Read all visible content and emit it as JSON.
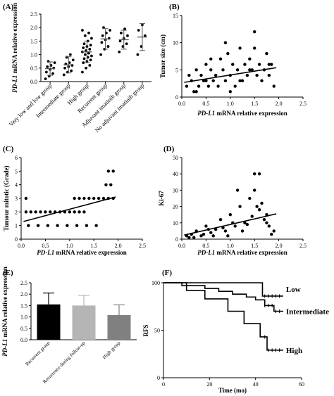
{
  "chart_data": [
    {
      "panel": "(A)",
      "type": "scatter",
      "ylabel_italic": "PD-L1",
      "ylabel_rest": " mRNA relative expression",
      "ylim": [
        0,
        2.5
      ],
      "yticks": [
        "0.0",
        "0.5",
        "1.0",
        "1.5",
        "2.0",
        "2.5"
      ],
      "categories": [
        "Very low and low group",
        "Intermediate group",
        "High group",
        "Recurrent group",
        "Adjuvant imatinib group",
        "No adjuvant imatinib group"
      ],
      "means": [
        0.48,
        0.62,
        1.1,
        1.58,
        1.55,
        1.65
      ],
      "sds": [
        0.25,
        0.3,
        0.4,
        0.38,
        0.35,
        0.5
      ],
      "points": [
        [
          0.1,
          0.2,
          0.3,
          0.35,
          0.45,
          0.5,
          0.55,
          0.6,
          0.7,
          0.75
        ],
        [
          0.25,
          0.35,
          0.4,
          0.5,
          0.55,
          0.6,
          0.65,
          0.7,
          0.8,
          0.9,
          1.0
        ],
        [
          0.35,
          0.5,
          0.6,
          0.7,
          0.75,
          0.8,
          0.85,
          0.9,
          0.95,
          1.0,
          1.05,
          1.1,
          1.15,
          1.2,
          1.25,
          1.3,
          1.35,
          1.4,
          1.5,
          1.6,
          1.7,
          1.8,
          1.9
        ],
        [
          1.0,
          1.2,
          1.3,
          1.45,
          1.55,
          1.6,
          1.7,
          1.8,
          1.9,
          2.0
        ],
        [
          1.1,
          1.3,
          1.4,
          1.5,
          1.6,
          1.7,
          1.8,
          1.95
        ],
        [
          1.0,
          1.3,
          1.7,
          1.9,
          2.1
        ]
      ]
    },
    {
      "panel": "(B)",
      "type": "scatter",
      "xlabel_italic": "PD-L1",
      "xlabel_rest": " mRNA relative expression",
      "ylabel": "Tumor size (cm)",
      "xlim": [
        0,
        2.5
      ],
      "ylim": [
        0,
        15
      ],
      "xticks": [
        "0.0",
        "0.5",
        "1.0",
        "1.5",
        "2.0",
        "2.5"
      ],
      "yticks": [
        "0",
        "5",
        "10",
        "15"
      ],
      "fit": [
        [
          0.05,
          2.7
        ],
        [
          1.95,
          5.4
        ]
      ],
      "x": [
        0.1,
        0.15,
        0.2,
        0.25,
        0.3,
        0.35,
        0.4,
        0.45,
        0.5,
        0.55,
        0.6,
        0.65,
        0.7,
        0.75,
        0.8,
        0.85,
        0.9,
        0.95,
        1.0,
        1.05,
        1.1,
        1.15,
        1.2,
        1.25,
        1.3,
        1.35,
        1.4,
        1.45,
        1.5,
        1.55,
        1.6,
        1.65,
        1.7,
        1.75,
        1.8,
        1.85,
        1.9,
        0.3,
        0.6,
        0.9,
        1.2,
        1.5,
        1.8,
        0.5,
        1.0,
        1.4
      ],
      "y": [
        2,
        4,
        3,
        1,
        5,
        2,
        4,
        3,
        6,
        2,
        5,
        3,
        4,
        2,
        7,
        5,
        3,
        8,
        4,
        6,
        2,
        5,
        9,
        3,
        6,
        4,
        7,
        5,
        12,
        4,
        6,
        3,
        5,
        8,
        4,
        6,
        2,
        1,
        7,
        10,
        3,
        9,
        6,
        3,
        1,
        5
      ]
    },
    {
      "panel": "(C)",
      "type": "scatter",
      "xlabel_italic": "PD-L1",
      "xlabel_rest": " mRNA relative expression",
      "ylabel": "Tumour mitotic (Grade)",
      "xlim": [
        0,
        2.5
      ],
      "ylim": [
        0,
        6
      ],
      "xticks": [
        "0.0",
        "0.5",
        "1.0",
        "1.5",
        "2.0",
        "2.5"
      ],
      "yticks": [
        "0",
        "1",
        "2",
        "3",
        "4",
        "5",
        "6"
      ],
      "fit": [
        [
          0.05,
          1.3
        ],
        [
          1.95,
          3.1
        ]
      ],
      "x": [
        0.1,
        0.2,
        0.3,
        0.4,
        0.5,
        0.6,
        0.7,
        0.8,
        0.9,
        1.0,
        1.1,
        1.2,
        1.3,
        0.15,
        0.35,
        0.55,
        0.75,
        0.95,
        1.15,
        1.35,
        1.55,
        1.1,
        1.2,
        1.3,
        1.4,
        1.5,
        1.6,
        1.7,
        1.8,
        1.9,
        1.75,
        1.85,
        1.8,
        1.9,
        0.1
      ],
      "y": [
        2,
        2,
        2,
        2,
        2,
        2,
        2,
        2,
        2,
        2,
        2,
        2,
        2,
        1,
        1,
        1,
        1,
        1,
        1,
        1,
        1,
        3,
        3,
        3,
        3,
        3,
        3,
        3,
        3,
        3,
        4,
        4,
        5,
        5,
        3
      ]
    },
    {
      "panel": "(D)",
      "type": "scatter",
      "xlabel_italic": "PD-L1",
      "xlabel_rest": " mRNA relative expression",
      "ylabel": "Ki-67",
      "xlim": [
        0,
        2.5
      ],
      "ylim": [
        0,
        50
      ],
      "xticks": [
        "0.0",
        "0.5",
        "1.0",
        "1.5",
        "2.0",
        "2.5"
      ],
      "yticks": [
        "0",
        "10",
        "20",
        "30",
        "40",
        "50"
      ],
      "fit": [
        [
          0.05,
          2.5
        ],
        [
          1.95,
          15.5
        ]
      ],
      "x": [
        0.1,
        0.15,
        0.2,
        0.3,
        0.4,
        0.5,
        0.6,
        0.7,
        0.8,
        0.9,
        1.0,
        1.1,
        1.2,
        1.3,
        1.4,
        1.5,
        1.6,
        1.7,
        1.8,
        1.9,
        0.25,
        0.45,
        0.65,
        0.85,
        1.05,
        1.25,
        1.45,
        1.65,
        1.85,
        0.55,
        0.95,
        1.35,
        1.75,
        1.15,
        1.55,
        1.5,
        1.6,
        1.75
      ],
      "y": [
        2,
        1,
        3,
        5,
        2,
        8,
        4,
        6,
        12,
        5,
        15,
        8,
        20,
        10,
        25,
        30,
        18,
        12,
        8,
        5,
        1,
        3,
        2,
        7,
        10,
        5,
        14,
        22,
        3,
        6,
        2,
        9,
        15,
        30,
        20,
        40,
        40,
        10
      ]
    },
    {
      "panel": "(E)",
      "type": "bar",
      "ylabel_italic": "PD-L1",
      "ylabel_rest": " mRNA relative expression",
      "ylim": [
        0,
        2.5
      ],
      "yticks": [
        "0.0",
        "0.5",
        "1.0",
        "1.5",
        "2.0",
        "2.5"
      ],
      "categories": [
        "Recurrent group",
        "Recurrence during follow-up",
        "High group"
      ],
      "values": [
        1.55,
        1.5,
        1.08
      ],
      "errors": [
        0.5,
        0.45,
        0.45
      ],
      "colors": [
        "#000000",
        "#b5b5b5",
        "#808080"
      ]
    },
    {
      "panel": "(F)",
      "type": "line",
      "xlabel": "Time (mo)",
      "ylabel": "RFS",
      "xlim": [
        0,
        60
      ],
      "ylim": [
        0,
        100
      ],
      "xticks": [
        "0",
        "20",
        "40",
        "60"
      ],
      "yticks": [
        "0",
        "50",
        "100"
      ],
      "series": [
        {
          "name": "Low",
          "x": [
            0,
            43,
            43,
            52
          ],
          "y": [
            100,
            100,
            86,
            86
          ]
        },
        {
          "name": "Intermediate",
          "x": [
            0,
            8,
            8,
            18,
            18,
            24,
            24,
            30,
            30,
            36,
            36,
            40,
            40,
            44,
            44,
            48,
            48,
            52
          ],
          "y": [
            100,
            100,
            97,
            97,
            94,
            94,
            91,
            91,
            88,
            88,
            85,
            85,
            82,
            82,
            76,
            76,
            70,
            70
          ]
        },
        {
          "name": "High",
          "x": [
            0,
            10,
            10,
            18,
            18,
            28,
            28,
            35,
            35,
            42,
            42,
            45,
            45,
            52
          ],
          "y": [
            100,
            100,
            92,
            92,
            83,
            83,
            70,
            70,
            57,
            57,
            43,
            43,
            29,
            29
          ]
        }
      ]
    }
  ]
}
